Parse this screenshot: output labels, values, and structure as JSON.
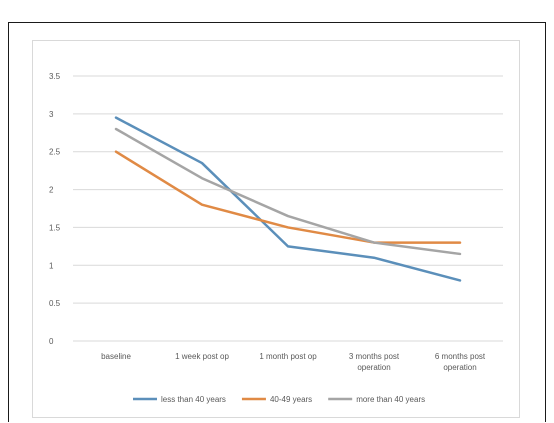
{
  "chart_data": {
    "type": "line",
    "title": "",
    "xlabel": "",
    "ylabel": "",
    "ylim": [
      0,
      3.5
    ],
    "ytick_labels": [
      "0",
      "0.5",
      "1",
      "1.5",
      "2",
      "2.5",
      "3",
      "3.5"
    ],
    "yticks": [
      0,
      0.5,
      1,
      1.5,
      2,
      2.5,
      3,
      3.5
    ],
    "categories": [
      [
        "baseline"
      ],
      [
        "1 week post op"
      ],
      [
        "1 month post op"
      ],
      [
        "3 months post",
        "operation"
      ],
      [
        "6 months post",
        "operation"
      ]
    ],
    "grid": true,
    "legend_position": "bottom",
    "series": [
      {
        "name": "less than 40 years",
        "color": "#5b8fba",
        "values": [
          2.95,
          2.35,
          1.25,
          1.1,
          0.8
        ]
      },
      {
        "name": "40-49 years",
        "color": "#e08a45",
        "values": [
          2.5,
          1.8,
          1.5,
          1.3,
          1.3
        ]
      },
      {
        "name": "more than 40 years",
        "color": "#a5a5a5",
        "values": [
          2.8,
          2.15,
          1.65,
          1.3,
          1.15
        ]
      }
    ]
  }
}
